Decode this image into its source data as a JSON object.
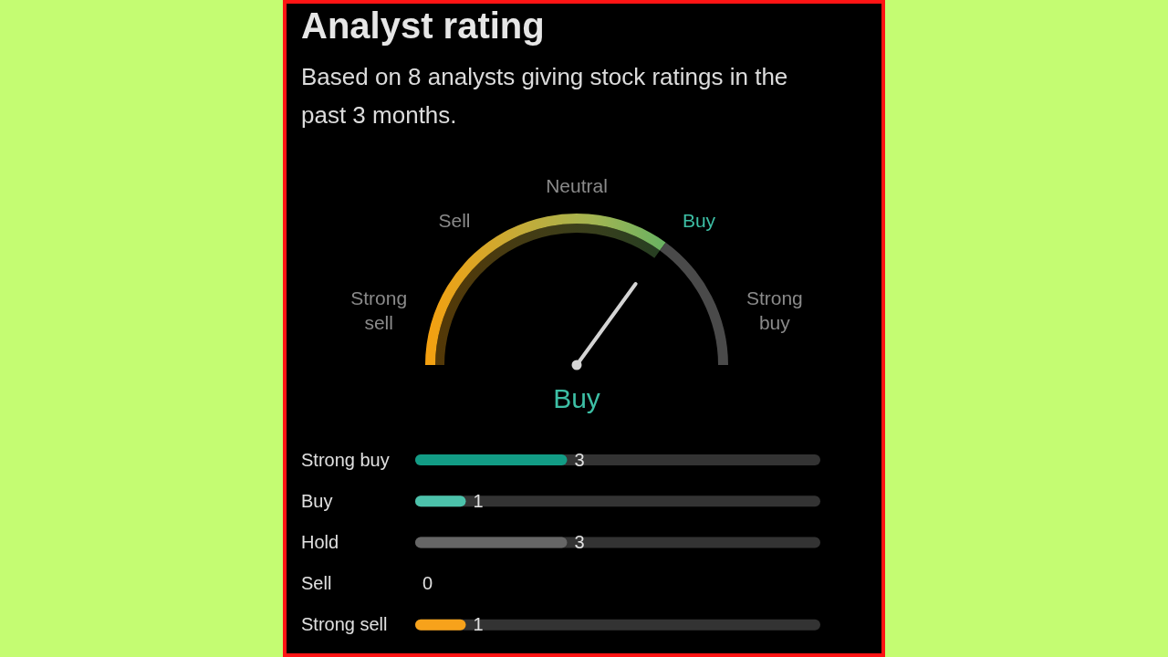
{
  "chart_data": [
    {
      "type": "other",
      "title": "Analyst rating",
      "subtitle": "Based on 8 analysts giving stock ratings in the past 3 months.",
      "categories": [
        "Strong sell",
        "Sell",
        "Neutral",
        "Buy",
        "Strong buy"
      ],
      "needle": "Buy"
    },
    {
      "type": "bar",
      "orientation": "horizontal",
      "categories": [
        "Strong buy",
        "Buy",
        "Hold",
        "Sell",
        "Strong sell"
      ],
      "values": [
        3,
        1,
        3,
        0,
        1
      ],
      "colors": [
        "#129c85",
        "#4cc2ab",
        "#666666",
        "#c2a83a",
        "#f7a21b"
      ],
      "tick_labels": "y",
      "data_labels": true
    }
  ]
}
